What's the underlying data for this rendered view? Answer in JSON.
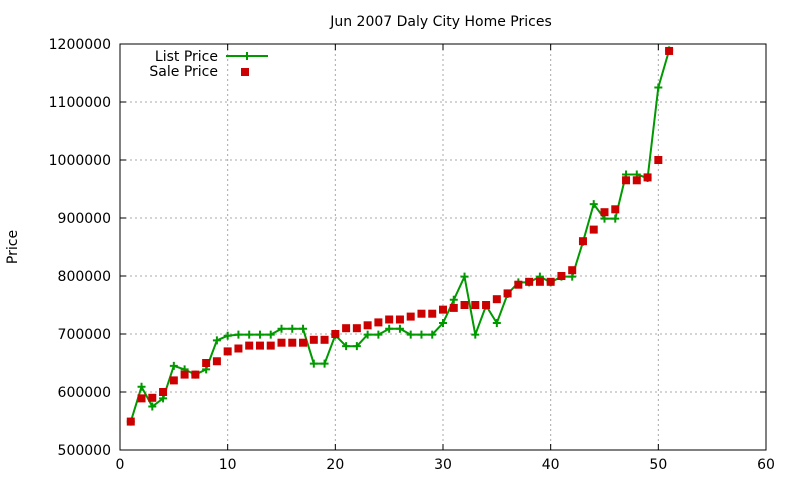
{
  "chart_data": {
    "type": "line",
    "title": "Jun 2007 Daly City Home Prices",
    "xlabel": "",
    "ylabel": "Price",
    "xlim": [
      0,
      60
    ],
    "ylim": [
      500000,
      1200000
    ],
    "grid": true,
    "legend_position": "top-left",
    "x_ticks": [
      0,
      10,
      20,
      30,
      40,
      50,
      60
    ],
    "y_ticks": [
      500000,
      600000,
      700000,
      800000,
      900000,
      1000000,
      1100000,
      1200000
    ],
    "x": [
      1,
      2,
      3,
      4,
      5,
      6,
      7,
      8,
      9,
      10,
      11,
      12,
      13,
      14,
      15,
      16,
      17,
      18,
      19,
      20,
      21,
      22,
      23,
      24,
      25,
      26,
      27,
      28,
      29,
      30,
      31,
      32,
      33,
      34,
      35,
      36,
      37,
      38,
      39,
      40,
      41,
      42,
      43,
      44,
      45,
      46,
      47,
      48,
      49,
      50,
      51
    ],
    "series": [
      {
        "name": "List Price",
        "style": "line-plus",
        "color": "#009900",
        "values": [
          549000,
          609000,
          575000,
          589000,
          645000,
          639000,
          630000,
          639000,
          689000,
          697000,
          699000,
          699000,
          699000,
          699000,
          709000,
          709000,
          709000,
          649000,
          649000,
          698000,
          679000,
          679000,
          699000,
          699000,
          709000,
          709000,
          699000,
          699000,
          699000,
          719000,
          759000,
          799000,
          699000,
          749000,
          719000,
          769000,
          789000,
          789000,
          799000,
          789000,
          799000,
          799000,
          859000,
          924000,
          899000,
          899000,
          975000,
          975000,
          969000,
          1125000,
          1189000
        ]
      },
      {
        "name": "Sale Price",
        "style": "square",
        "color": "#cc0000",
        "values": [
          549000,
          589000,
          590000,
          600000,
          620000,
          630000,
          630000,
          650000,
          653000,
          670000,
          675000,
          680000,
          680000,
          680000,
          685000,
          685000,
          685000,
          690000,
          690000,
          700000,
          710000,
          710000,
          715000,
          720000,
          725000,
          725000,
          730000,
          735000,
          735000,
          742000,
          745000,
          750000,
          750000,
          750000,
          760000,
          770000,
          785000,
          790000,
          790000,
          790000,
          800000,
          810000,
          860000,
          880000,
          910000,
          915000,
          965000,
          965000,
          970000,
          1000000,
          1188000
        ]
      }
    ]
  }
}
